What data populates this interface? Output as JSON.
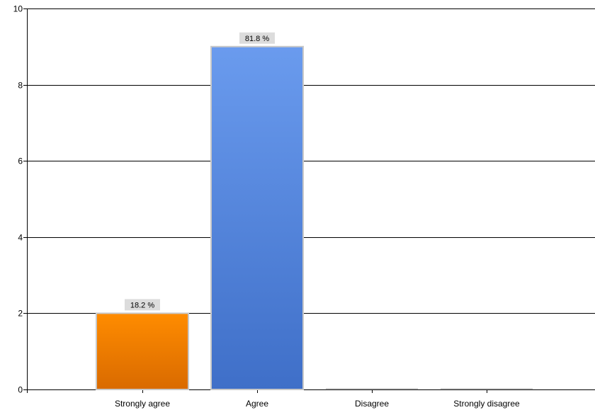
{
  "chart_data": {
    "type": "bar",
    "categories": [
      "Strongly agree",
      "Agree",
      "Disagree",
      "Strongly disagree"
    ],
    "values": [
      2,
      9,
      0,
      0
    ],
    "data_labels": [
      "18.2 %",
      "81.8 %",
      "",
      ""
    ],
    "ylim": [
      0,
      10
    ],
    "yticks": [
      "0",
      "2",
      "4",
      "6",
      "8",
      "10"
    ],
    "grid": true,
    "legend": "none",
    "colors": {
      "strongly_agree_top": "#ff8c00",
      "strongly_agree_bottom": "#d96a00",
      "agree_top": "#6a9bee",
      "agree_bottom": "#3f6fc8",
      "empty_bar": "#d0d0d0",
      "label_bg": "#dcdcdc",
      "grid": "#000000"
    }
  }
}
